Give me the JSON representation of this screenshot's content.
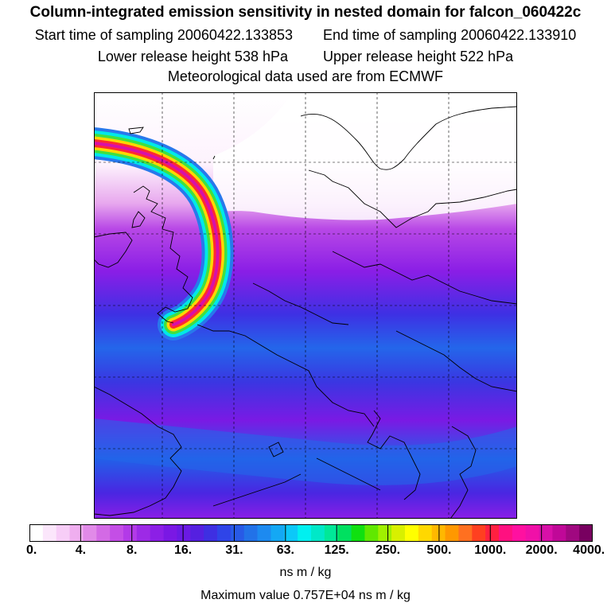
{
  "header": {
    "title": "Column-integrated emission sensitivity in nested domain for falcon_060422c",
    "start_label": "Start time of sampling 20060422.133853",
    "end_label": "End time of sampling 20060422.133910",
    "lower_label": "Lower release height  538 hPa",
    "upper_label": "Upper release height  522 hPa",
    "met_label": "Meteorological data used are from ECMWF"
  },
  "colorbar": {
    "tick_labels": [
      "0.",
      "4.",
      "8.",
      "16.",
      "31.",
      "63.",
      "125.",
      "250.",
      "500.",
      "1000.",
      "2000.",
      "4000."
    ],
    "unit": "ns m / kg",
    "colors": [
      "#ffffff",
      "#fbe6fb",
      "#f7cdf7",
      "#efaeef",
      "#e18ae8",
      "#d36ae5",
      "#c44ee6",
      "#b33ae8",
      "#9d2ae6",
      "#8c1fe6",
      "#7a18e4",
      "#6a1ae4",
      "#5520e0",
      "#3e2fe2",
      "#2f44e8",
      "#285ae6",
      "#2272e8",
      "#1d8af0",
      "#14a8f4",
      "#0cc8f8",
      "#00f0f0",
      "#00e8c8",
      "#00e898",
      "#00e060",
      "#10e010",
      "#60e800",
      "#a0f000",
      "#d8f000",
      "#ffff00",
      "#ffd800",
      "#ffb800",
      "#ff9800",
      "#ff7020",
      "#ff4020",
      "#ff2040",
      "#ff1080",
      "#ff10a0",
      "#f010a8",
      "#d810a8",
      "#c00898",
      "#a00880",
      "#780060"
    ]
  },
  "footer": {
    "max_label": "Maximum value  0.757E+04 ns m / kg"
  }
}
